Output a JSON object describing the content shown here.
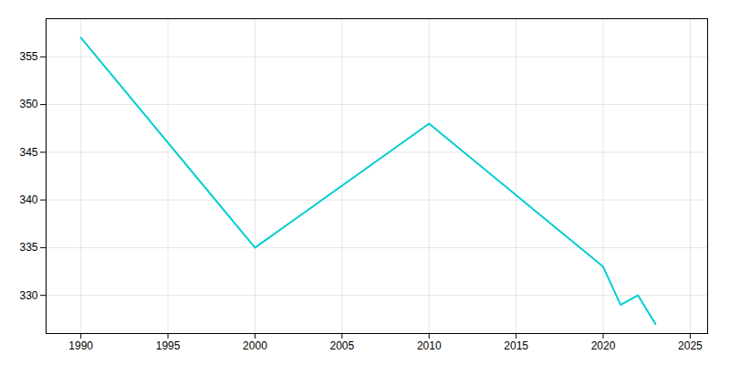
{
  "chart_data": {
    "type": "line",
    "x": [
      1990,
      2000,
      2010,
      2020,
      2021,
      2022,
      2023
    ],
    "values": [
      357,
      335,
      348,
      333,
      329,
      330,
      327
    ],
    "color": "#00CED1",
    "xlim": [
      1988,
      2026
    ],
    "ylim": [
      326,
      359
    ],
    "xticks": [
      1990,
      1995,
      2000,
      2005,
      2010,
      2015,
      2020,
      2025
    ],
    "yticks": [
      330,
      335,
      340,
      345,
      350,
      355
    ],
    "grid": true
  }
}
